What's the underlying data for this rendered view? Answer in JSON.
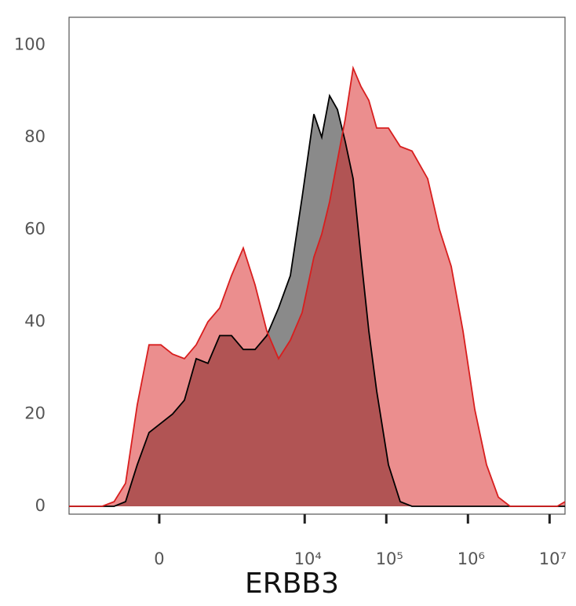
{
  "chart_data": {
    "type": "area",
    "x_label": "ERBB3",
    "xscale": "biexponential",
    "x": [
      -2095,
      -1603,
      -1139,
      -798,
      -546,
      -364,
      -219,
      -97,
      15,
      127,
      255,
      410,
      612,
      880,
      1248,
      1755,
      2456,
      3429,
      4783,
      6676,
      9301,
      12975,
      16186,
      20191,
      25189,
      31445,
      39224,
      48955,
      61070,
      76196,
      106152,
      147957,
      206213,
      321070,
      447512,
      623935,
      869537,
      1212122,
      1689424,
      2354734,
      3282196,
      6375060,
      12379400,
      15457700
    ],
    "series": [
      {
        "color": "#000000",
        "values": [
          0,
          0,
          0,
          0,
          0,
          1,
          9,
          16,
          18,
          20,
          23,
          32,
          31,
          37,
          37,
          34,
          34,
          37,
          43,
          50,
          67,
          85,
          80,
          89,
          86,
          79,
          71,
          54,
          38,
          25,
          9,
          1,
          0,
          0,
          0,
          0,
          0,
          0,
          0,
          0,
          0,
          0,
          0,
          0
        ]
      },
      {
        "color": "#d81e1e",
        "values": [
          0,
          0,
          0,
          0,
          1,
          5,
          22,
          35,
          35,
          33,
          32,
          35,
          40,
          43,
          50,
          56,
          48,
          38,
          32,
          36,
          42,
          54,
          59,
          66,
          75,
          84,
          95,
          91,
          88,
          82,
          82,
          78,
          77,
          71,
          60,
          52,
          38,
          21,
          9,
          2,
          0,
          0,
          0,
          1
        ]
      }
    ],
    "xlim": [
      -2095,
      15457700
    ],
    "ylim": [
      -1.7,
      106
    ],
    "xticks": [
      0,
      {
        "value": 10000,
        "label": "10⁴"
      },
      {
        "value": 100000,
        "label": "10⁵"
      },
      {
        "value": 1000000,
        "label": "10⁶"
      },
      {
        "value": 10000000,
        "label": "10⁷"
      }
    ],
    "yticks": [
      0,
      20,
      40,
      60,
      80,
      100
    ]
  }
}
